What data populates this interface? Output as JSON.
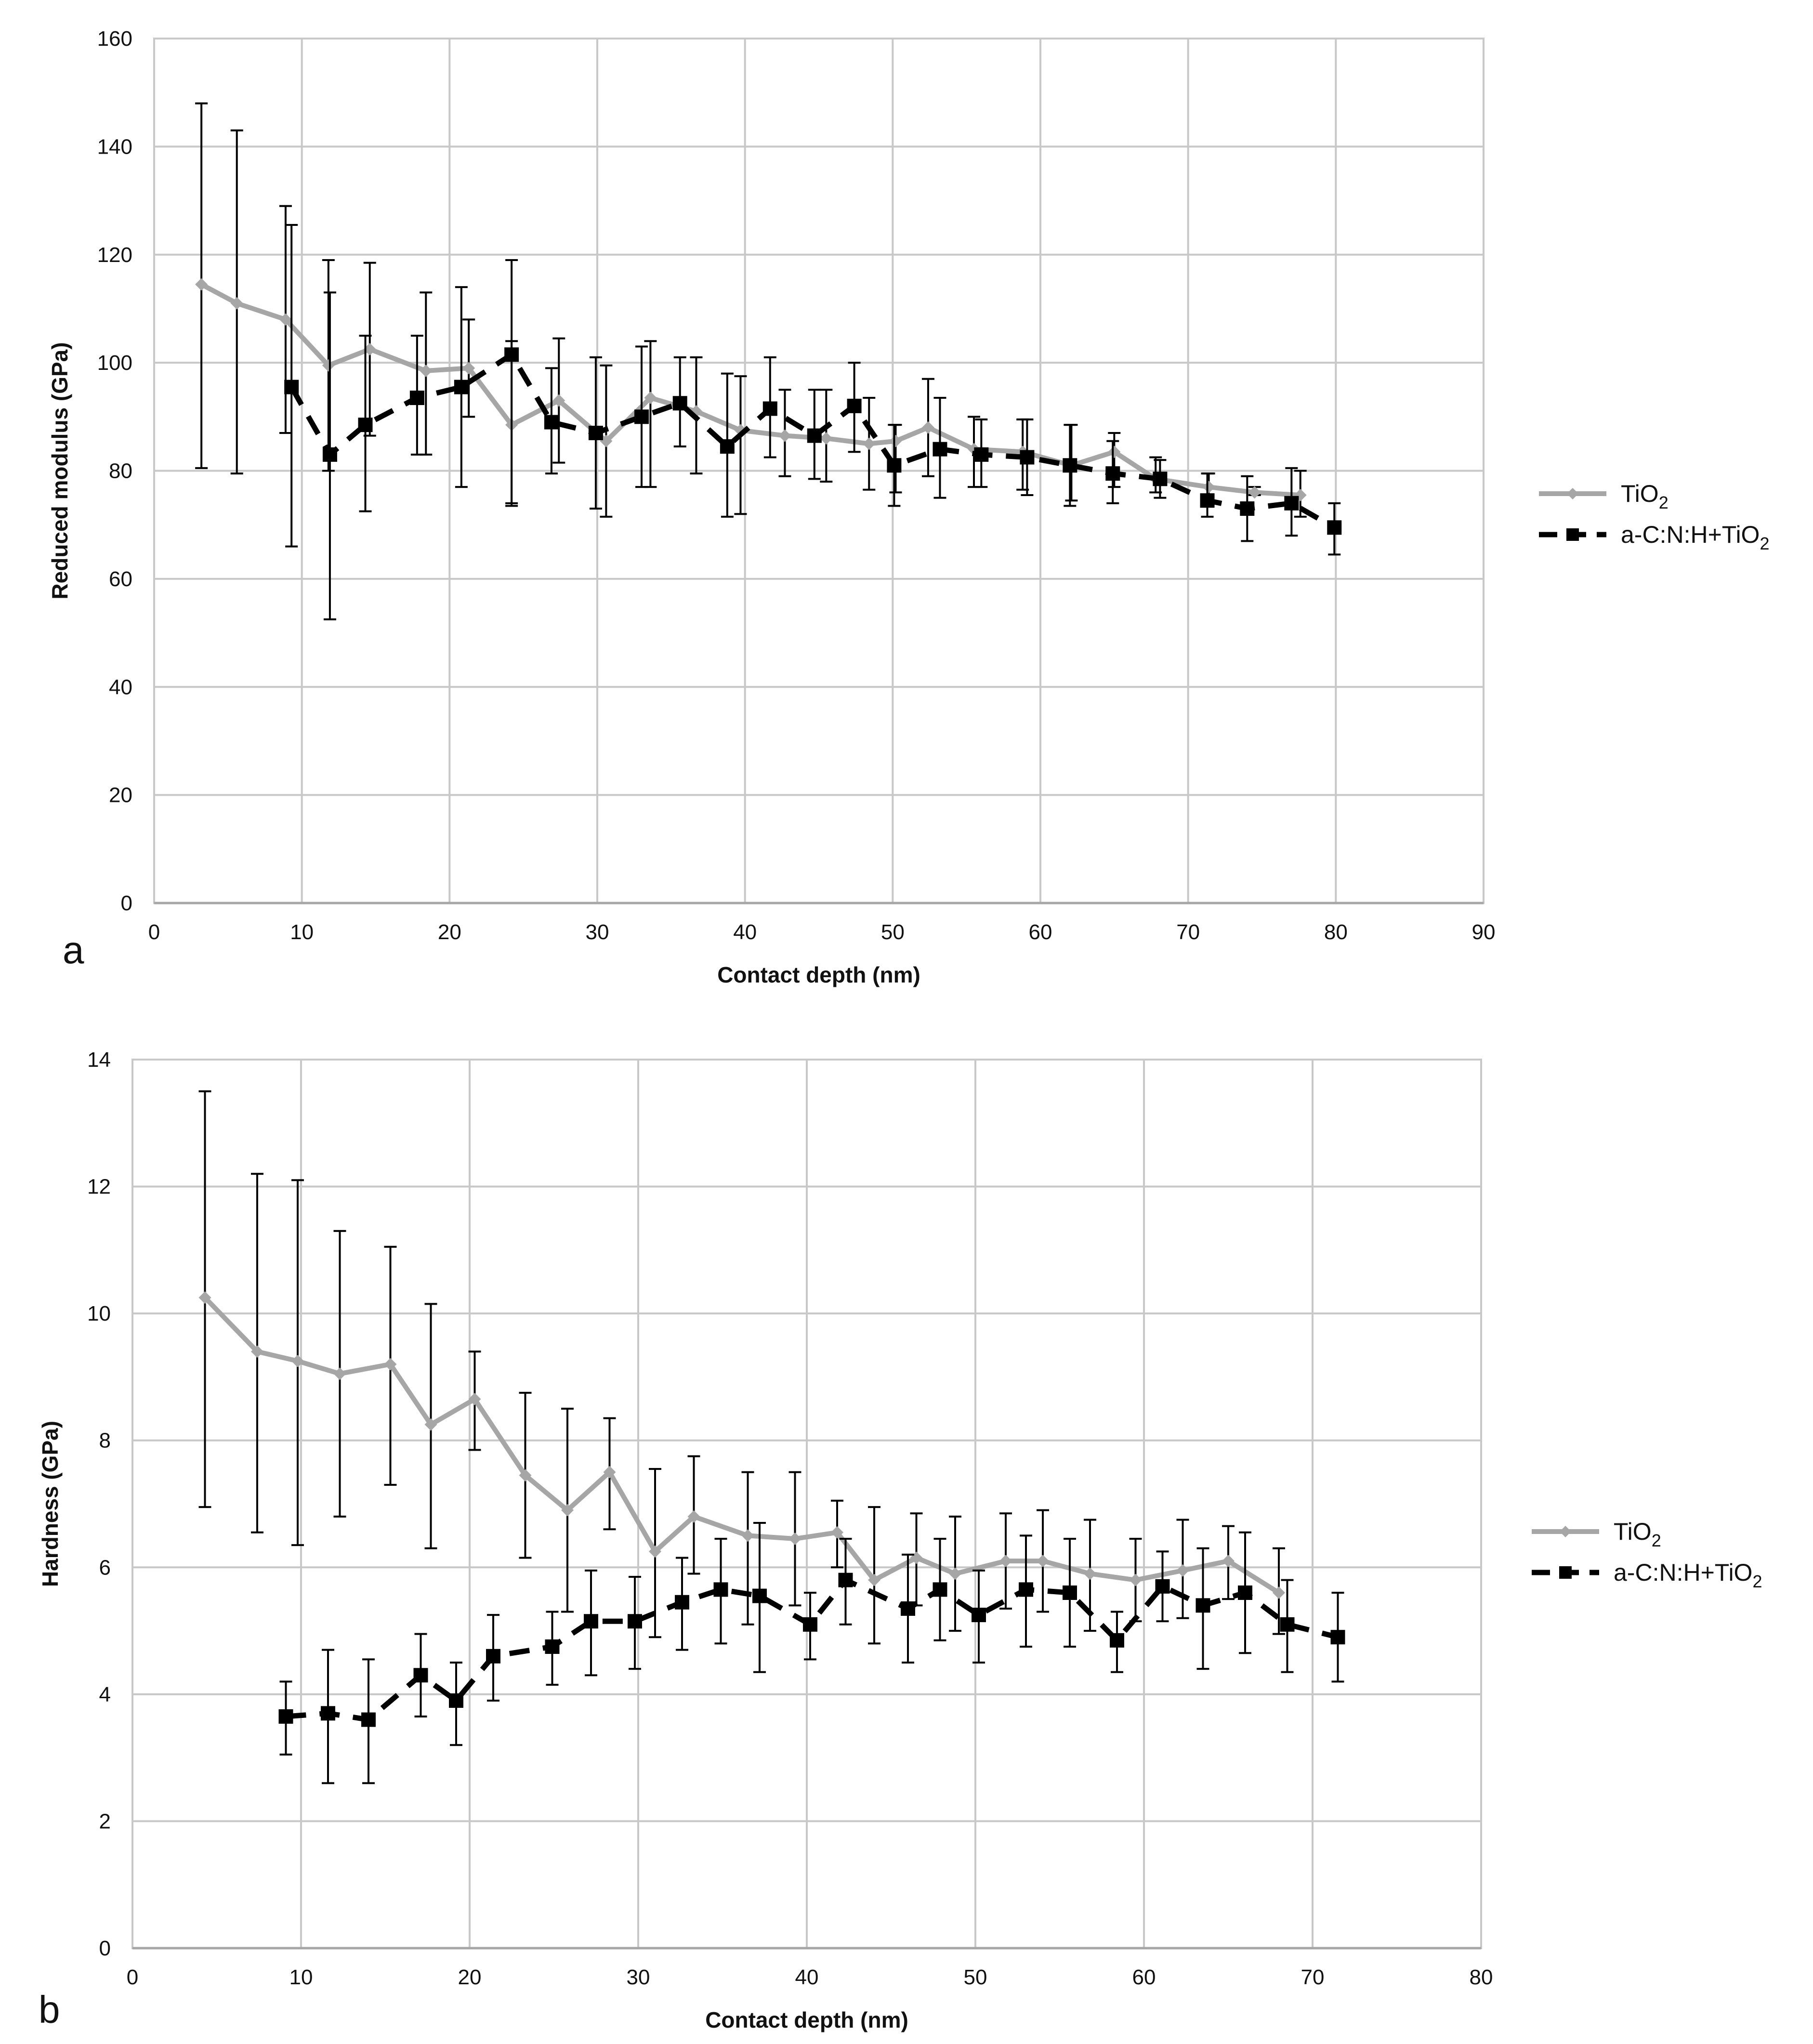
{
  "chart_data": [
    {
      "type": "line",
      "panel_label": "a",
      "title": "",
      "xlabel": "Contact depth (nm)",
      "ylabel": "Reduced modulus (GPa)",
      "xlim": [
        0,
        90
      ],
      "ylim": [
        0,
        160
      ],
      "xticks": [
        0,
        10,
        20,
        30,
        40,
        50,
        60,
        70,
        80,
        90
      ],
      "yticks": [
        0,
        20,
        40,
        60,
        80,
        100,
        120,
        140,
        160
      ],
      "grid": true,
      "legend_position": "right",
      "series": [
        {
          "name": "TiO2",
          "legend_main": "TiO",
          "legend_sub": "2",
          "color": "#a6a6a6",
          "style": "solid",
          "marker": "diamond",
          "x": [
            3.2,
            5.6,
            8.9,
            11.8,
            14.6,
            18.4,
            21.3,
            24.2,
            27.4,
            30.6,
            33.6,
            36.7,
            39.7,
            42.7,
            45.5,
            48.4,
            50.2,
            52.4,
            55.5,
            58.8,
            62.1,
            65.0,
            67.8,
            71.4,
            74.5,
            77.6
          ],
          "y": [
            114.5,
            111.0,
            108.0,
            99.5,
            102.5,
            98.5,
            99.0,
            88.5,
            93.0,
            85.5,
            93.5,
            91.0,
            87.5,
            86.5,
            86.0,
            85.0,
            85.5,
            88.0,
            84.0,
            83.5,
            81.0,
            83.5,
            78.5,
            77.0,
            76.0,
            75.5
          ],
          "err_low": [
            80.5,
            79.5,
            87.0,
            80.0,
            86.5,
            83.0,
            90.0,
            74.0,
            81.5,
            71.5,
            77.0,
            79.5,
            72.0,
            79.0,
            78.0,
            76.5,
            76.0,
            79.0,
            77.0,
            76.5,
            74.5,
            77.0,
            76.0,
            74.5,
            75.5,
            71.5
          ],
          "err_high": [
            148.0,
            143.0,
            129.0,
            119.0,
            118.5,
            113.0,
            108.0,
            104.0,
            104.5,
            99.5,
            104.0,
            101.0,
            97.5,
            95.0,
            95.0,
            93.5,
            88.5,
            97.0,
            90.0,
            89.5,
            88.5,
            87.0,
            82.5,
            79.5,
            77.0,
            80.0
          ]
        },
        {
          "name": "a-C:N:H+TiO2",
          "legend_main": "a-C:N:H+TiO",
          "legend_sub": "2",
          "color": "#000000",
          "style": "dashed",
          "marker": "square",
          "x": [
            9.3,
            11.9,
            14.3,
            17.8,
            20.8,
            24.2,
            26.9,
            29.9,
            33.0,
            35.6,
            38.8,
            41.7,
            44.7,
            47.4,
            50.1,
            53.2,
            56.0,
            59.1,
            62.0,
            64.9,
            68.1,
            71.3,
            74.0,
            77.0,
            79.9
          ],
          "y": [
            95.5,
            83.0,
            88.5,
            93.5,
            95.5,
            101.5,
            89.0,
            87.0,
            90.0,
            92.5,
            84.5,
            91.5,
            86.5,
            92.0,
            81.0,
            84.0,
            83.0,
            82.5,
            81.0,
            79.5,
            78.5,
            74.5,
            73.0,
            74.0,
            69.5
          ],
          "err_low": [
            66.0,
            52.5,
            72.5,
            83.0,
            77.0,
            73.5,
            79.5,
            73.0,
            77.0,
            84.5,
            71.5,
            82.5,
            78.5,
            83.5,
            73.5,
            75.0,
            77.0,
            75.5,
            73.5,
            74.0,
            75.0,
            71.5,
            67.0,
            68.0,
            64.5
          ],
          "err_high": [
            125.5,
            113.0,
            105.0,
            105.0,
            114.0,
            119.0,
            99.0,
            101.0,
            103.0,
            101.0,
            98.0,
            101.0,
            95.0,
            100.0,
            88.5,
            93.5,
            89.5,
            89.5,
            88.5,
            85.5,
            82.0,
            79.5,
            79.0,
            80.5,
            74.0
          ]
        }
      ]
    },
    {
      "type": "line",
      "panel_label": "b",
      "title": "",
      "xlabel": "Contact depth (nm)",
      "ylabel": "Hardness (GPa)",
      "xlim": [
        0,
        80
      ],
      "ylim": [
        0,
        14
      ],
      "xticks": [
        0,
        10,
        20,
        30,
        40,
        50,
        60,
        70,
        80
      ],
      "yticks": [
        0,
        2,
        4,
        6,
        8,
        10,
        12,
        14
      ],
      "grid": true,
      "legend_position": "right",
      "series": [
        {
          "name": "TiO2",
          "legend_main": "TiO",
          "legend_sub": "2",
          "color": "#a6a6a6",
          "style": "solid",
          "marker": "diamond",
          "x": [
            4.3,
            7.4,
            9.8,
            12.3,
            15.3,
            17.7,
            20.3,
            23.3,
            25.8,
            28.3,
            31.0,
            33.3,
            36.5,
            39.3,
            41.8,
            44.0,
            46.5,
            48.8,
            51.8,
            54.0,
            56.8,
            59.5,
            62.3,
            65.0,
            68.0
          ],
          "y": [
            10.25,
            9.4,
            9.25,
            9.05,
            9.2,
            8.25,
            8.65,
            7.45,
            6.9,
            7.5,
            6.25,
            6.8,
            6.5,
            6.45,
            6.55,
            5.8,
            6.15,
            5.9,
            6.1,
            6.1,
            5.9,
            5.8,
            5.95,
            6.1,
            5.6
          ],
          "err_low": [
            6.95,
            6.55,
            6.35,
            6.8,
            7.3,
            6.3,
            7.85,
            6.15,
            5.3,
            6.6,
            4.9,
            5.9,
            5.1,
            5.4,
            6.0,
            4.8,
            5.4,
            5.0,
            5.35,
            5.3,
            5.0,
            5.15,
            5.2,
            5.5,
            4.95
          ],
          "err_high": [
            13.5,
            12.2,
            12.1,
            11.3,
            11.05,
            10.15,
            9.4,
            8.75,
            8.5,
            8.35,
            7.55,
            7.75,
            7.5,
            7.5,
            7.05,
            6.95,
            6.85,
            6.8,
            6.85,
            6.9,
            6.75,
            6.45,
            6.75,
            6.65,
            6.3
          ]
        },
        {
          "name": "a-C:N:H+TiO2",
          "legend_main": "a-C:N:H+TiO",
          "legend_sub": "2",
          "color": "#000000",
          "style": "dashed",
          "marker": "square",
          "x": [
            9.1,
            11.6,
            14.0,
            17.1,
            19.2,
            21.4,
            24.9,
            27.2,
            29.8,
            32.6,
            34.9,
            37.2,
            40.2,
            42.3,
            46.0,
            47.9,
            50.2,
            53.0,
            55.6,
            58.4,
            61.1,
            63.5,
            66.0,
            68.5,
            71.5
          ],
          "y": [
            3.65,
            3.7,
            3.6,
            4.3,
            3.9,
            4.6,
            4.75,
            5.15,
            5.15,
            5.45,
            5.65,
            5.55,
            5.1,
            5.8,
            5.35,
            5.65,
            5.25,
            5.65,
            5.6,
            4.85,
            5.7,
            5.4,
            5.6,
            5.1,
            4.9
          ],
          "err_low": [
            3.05,
            2.6,
            2.6,
            3.65,
            3.2,
            3.9,
            4.15,
            4.3,
            4.4,
            4.7,
            4.8,
            4.35,
            4.55,
            5.1,
            4.5,
            4.85,
            4.5,
            4.75,
            4.75,
            4.35,
            5.15,
            4.4,
            4.65,
            4.35,
            4.2
          ],
          "err_high": [
            4.2,
            4.7,
            4.55,
            4.95,
            4.5,
            5.25,
            5.3,
            5.95,
            5.85,
            6.15,
            6.45,
            6.7,
            5.6,
            6.45,
            6.2,
            6.45,
            5.95,
            6.5,
            6.45,
            5.3,
            6.25,
            6.3,
            6.55,
            5.8,
            5.6
          ]
        }
      ]
    }
  ]
}
